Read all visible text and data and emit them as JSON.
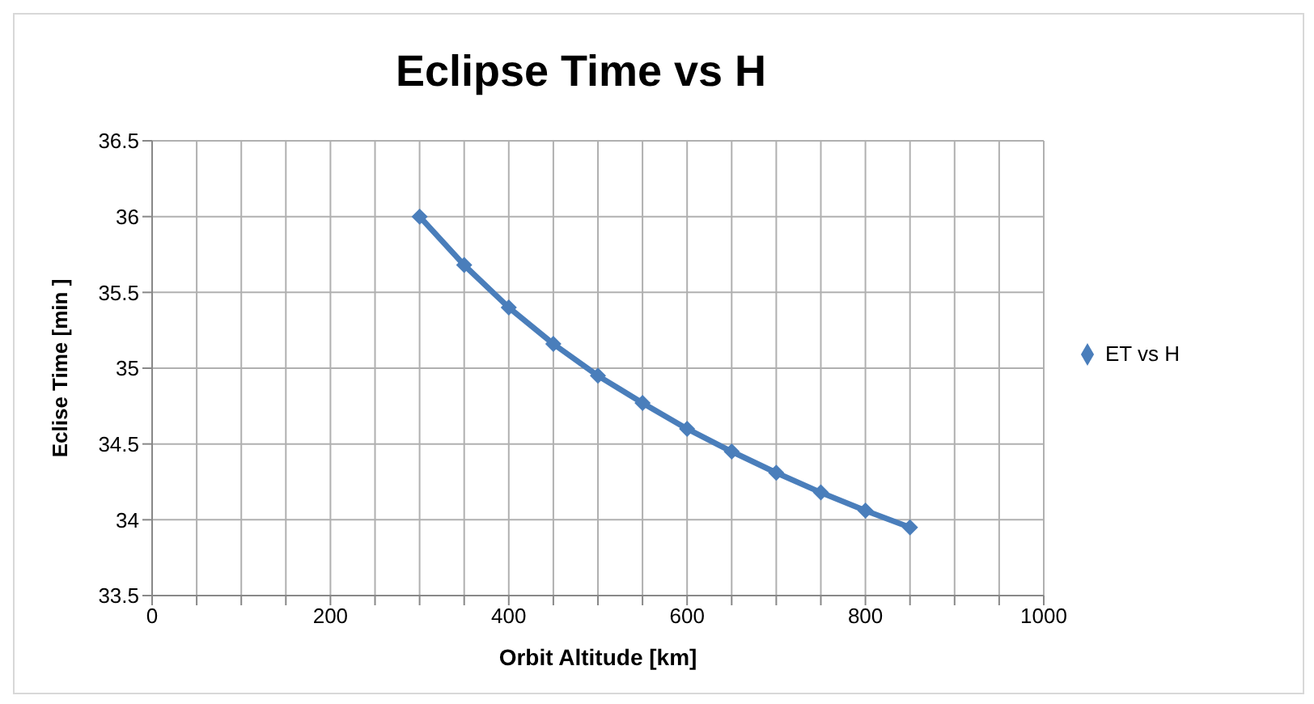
{
  "chart_data": {
    "type": "line",
    "title": "Eclipse Time vs H",
    "xlabel": "Orbit Altitude [km]",
    "ylabel": "Eclise Time  [min ]",
    "x": [
      300,
      350,
      400,
      450,
      500,
      550,
      600,
      650,
      700,
      750,
      800,
      850
    ],
    "series": [
      {
        "name": "ET vs H",
        "color": "#4a7ebb",
        "values": [
          36.0,
          35.68,
          35.4,
          35.16,
          34.95,
          34.77,
          34.6,
          34.45,
          34.31,
          34.18,
          34.06,
          33.95
        ]
      }
    ],
    "xlim": [
      0,
      1000
    ],
    "xticks": [
      0,
      {
        "value": 50,
        "label": null
      },
      {
        "value": 100,
        "label": null
      },
      {
        "value": 150,
        "label": null
      },
      200,
      {
        "value": 250,
        "label": null
      },
      {
        "value": 300,
        "label": null
      },
      {
        "value": 350,
        "label": null
      },
      400,
      {
        "value": 450,
        "label": null
      },
      {
        "value": 500,
        "label": null
      },
      {
        "value": 550,
        "label": null
      },
      600,
      {
        "value": 650,
        "label": null
      },
      {
        "value": 700,
        "label": null
      },
      {
        "value": 750,
        "label": null
      },
      800,
      {
        "value": 850,
        "label": null
      },
      {
        "value": 900,
        "label": null
      },
      {
        "value": 950,
        "label": null
      },
      1000
    ],
    "ylim": [
      33.5,
      36.5
    ],
    "yticks": [
      33.5,
      34,
      34.5,
      35,
      35.5,
      36,
      36.5
    ],
    "grid": true,
    "legend": "right",
    "marker": "diamond",
    "line_style": "solid"
  }
}
